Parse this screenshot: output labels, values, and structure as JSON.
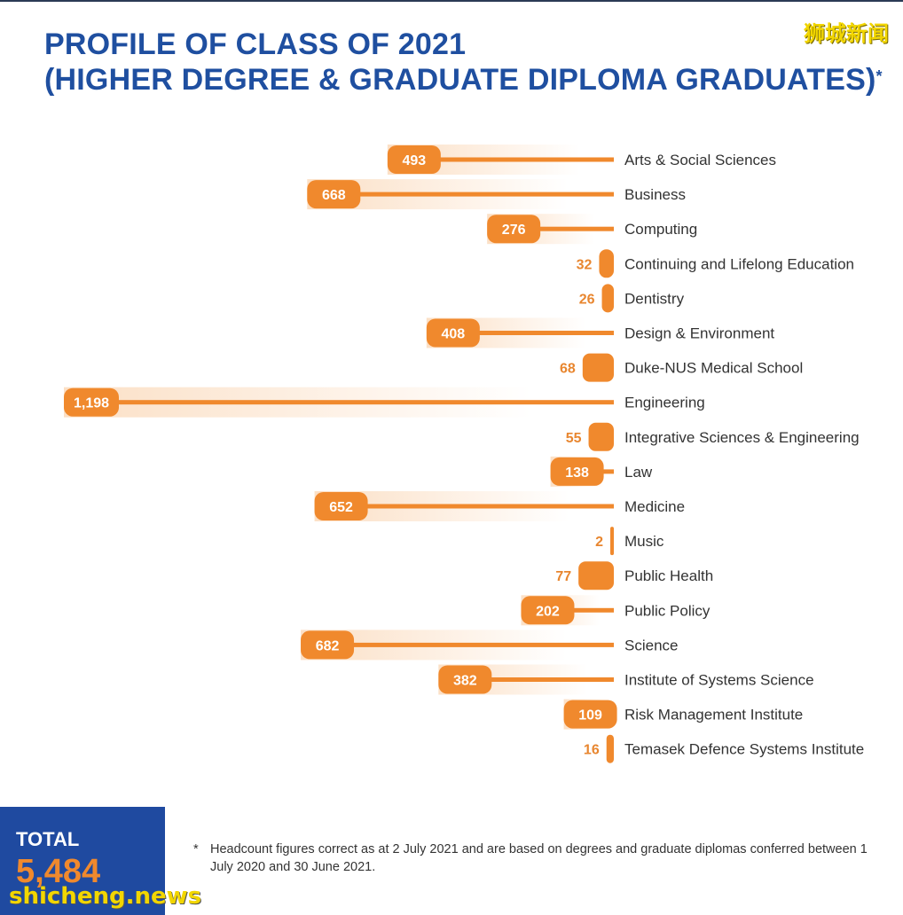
{
  "header": {
    "title_line1": "PROFILE OF CLASS OF 2021",
    "title_line2": "(HIGHER DEGREE & GRADUATE DIPLOMA GRADUATES)",
    "title_mark": "*"
  },
  "watermark_top": "狮城新闻",
  "chart_data": {
    "type": "bar",
    "orientation": "horizontal",
    "categories": [
      "Arts & Social Sciences",
      "Business",
      "Computing",
      "Continuing and Lifelong Education",
      "Dentistry",
      "Design & Environment",
      "Duke-NUS Medical School",
      "Engineering",
      "Integrative Sciences & Engineering",
      "Law",
      "Medicine",
      "Music",
      "Public Health",
      "Public Policy",
      "Science",
      "Institute of Systems Science",
      "Risk Management Institute",
      "Temasek Defence Systems Institute"
    ],
    "values": [
      493,
      668,
      276,
      32,
      26,
      408,
      68,
      1198,
      55,
      138,
      652,
      2,
      77,
      202,
      682,
      382,
      109,
      16
    ],
    "value_labels": [
      "493",
      "668",
      "276",
      "32",
      "26",
      "408",
      "68",
      "1,198",
      "55",
      "138",
      "652",
      "2",
      "77",
      "202",
      "682",
      "382",
      "109",
      "16"
    ],
    "xlim": [
      0,
      1198
    ],
    "colors": {
      "bar": "#f0892d",
      "glow": "#fbdcbf",
      "label_text": "#e8862f",
      "category_text": "#333333"
    }
  },
  "total": {
    "label": "TOTAL",
    "value": "5,484"
  },
  "footnote": {
    "star": "*",
    "text": "Headcount figures correct as at 2 July 2021 and are based on degrees and graduate diplomas conferred between 1 July 2020 and 30 June 2021."
  },
  "watermark_bottom": "shicheng.news"
}
